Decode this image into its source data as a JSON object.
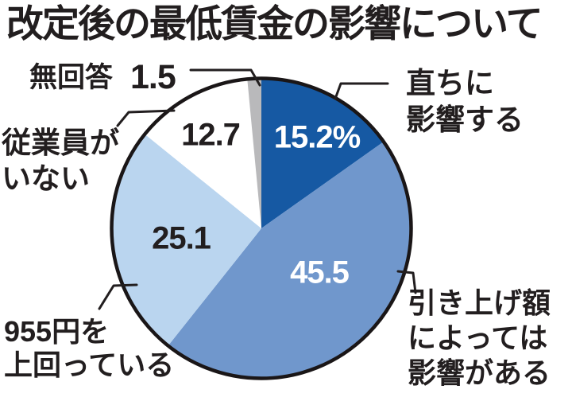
{
  "title": "改定後の最低賃金の影響について",
  "chart_data": {
    "type": "pie",
    "title": "改定後の最低賃金の影響について",
    "unit": "%",
    "layout": "starts at 12 o'clock, clockwise",
    "segments": [
      {
        "key": "immediate",
        "label": "直ちに影響する",
        "value": 15.2,
        "display": "15.2%",
        "color": "#1659A3",
        "display_color": "#FFFFFF"
      },
      {
        "key": "depends",
        "label": "引き上げ額によっては影響がある",
        "value": 45.5,
        "display": "45.5",
        "color": "#7097CC",
        "display_color": "#FFFFFF"
      },
      {
        "key": "above_955",
        "label": "955円を上回っている",
        "value": 25.1,
        "display": "25.1",
        "color": "#BAD5EF",
        "display_color": "#221E1F"
      },
      {
        "key": "no_employees",
        "label": "従業員がいない",
        "value": 12.7,
        "display": "12.7",
        "color": "#FFFFFF",
        "display_color": "#221E1F"
      },
      {
        "key": "no_answer",
        "label": "無回答",
        "value": 1.5,
        "display": "1.5",
        "color": "#B9B9BB",
        "display_color": "#221E1F"
      }
    ]
  },
  "callouts": {
    "immediate": "直ちに\n影響する",
    "depends": "引き上げ額\nによっては\n影響がある",
    "above_955": "955円を\n上回っている",
    "no_employees": "従業員が\nいない",
    "no_answer": "無回答"
  },
  "colors": {
    "outline": "#1A1617",
    "leader_line": "#221E1F",
    "text": "#221E1F",
    "background": "#FFFFFF"
  }
}
